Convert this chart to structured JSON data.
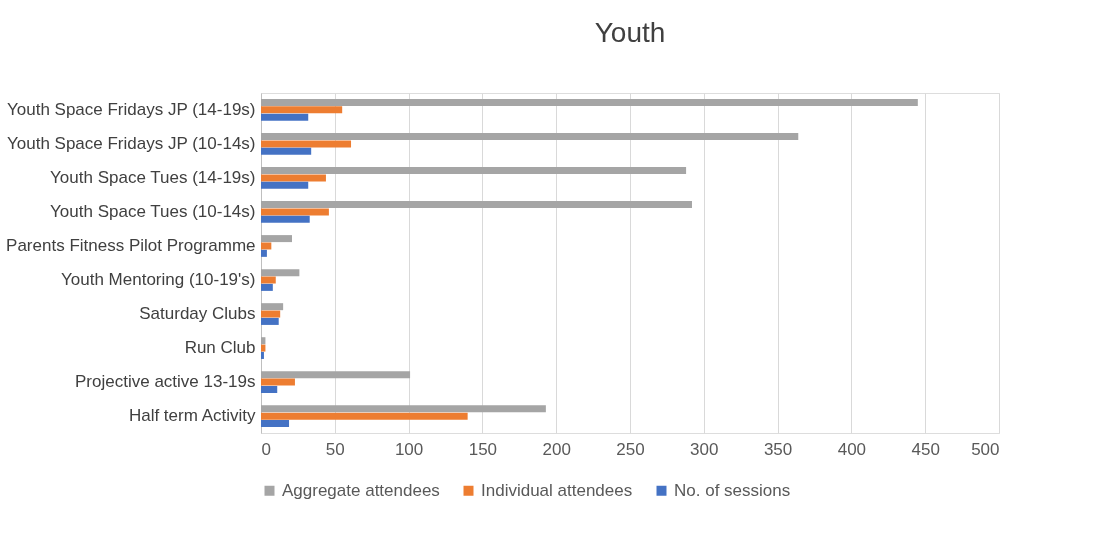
{
  "chart_data": {
    "type": "bar",
    "orientation": "horizontal",
    "title": "Youth",
    "categories": [
      "Youth Space Fridays JP (14-19s)",
      "Youth Space Fridays JP (10-14s)",
      "Youth Space Tues (14-19s)",
      "Youth Space Tues (10-14s)",
      "Parents Fitness Pilot Programme",
      "Youth Mentoring (10-19's)",
      "Saturday Clubs",
      "Run Club",
      "Projective active 13-19s",
      "Half term Activity"
    ],
    "series": [
      {
        "name": "Aggregate attendees",
        "color": "#a5a5a5",
        "values": [
          445,
          364,
          288,
          292,
          21,
          26,
          15,
          3,
          101,
          193
        ]
      },
      {
        "name": "Individual attendees",
        "color": "#ed7d31",
        "values": [
          55,
          61,
          44,
          46,
          7,
          10,
          13,
          3,
          23,
          140
        ]
      },
      {
        "name": "No. of sessions",
        "color": "#4472c4",
        "values": [
          32,
          34,
          32,
          33,
          4,
          8,
          12,
          2,
          11,
          19
        ]
      }
    ],
    "xlim": [
      0,
      500
    ],
    "xticks": [
      0,
      50,
      100,
      150,
      200,
      250,
      300,
      350,
      400,
      450,
      500
    ],
    "grid": "x",
    "legend": "bottom"
  }
}
